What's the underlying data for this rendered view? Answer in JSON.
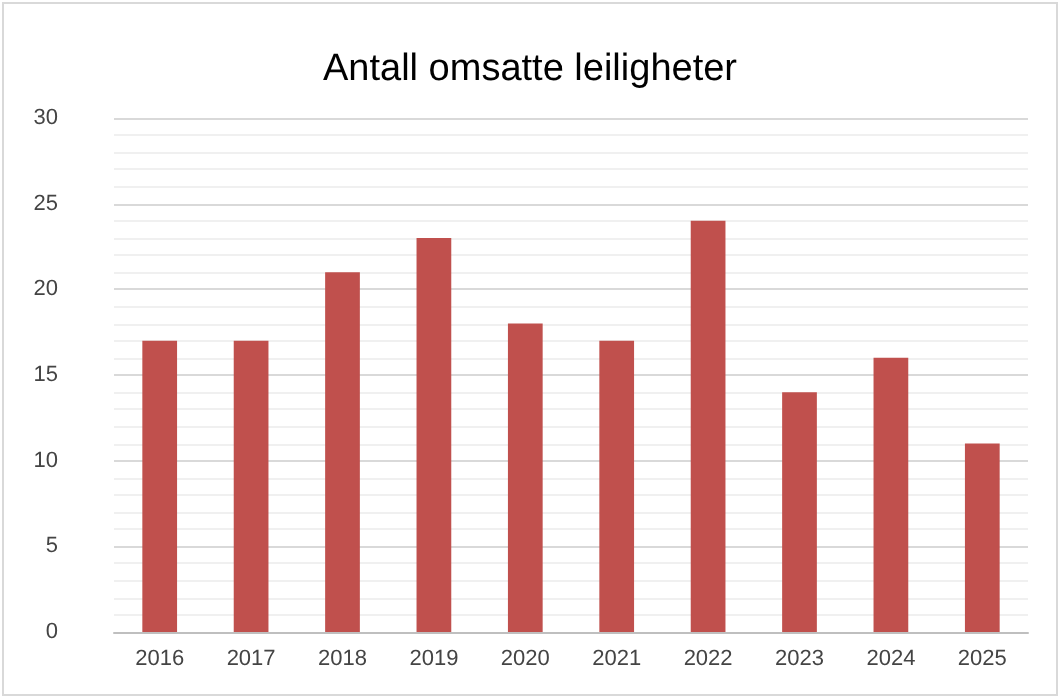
{
  "chart_data": {
    "type": "bar",
    "title": "Antall omsatte leiligheter",
    "categories": [
      "2016",
      "2017",
      "2018",
      "2019",
      "2020",
      "2021",
      "2022",
      "2023",
      "2024",
      "2025"
    ],
    "values": [
      17,
      17,
      21,
      23,
      18,
      17,
      24,
      14,
      16,
      11
    ],
    "color": "#c0504d",
    "ylim": [
      0,
      30
    ],
    "yticks": [
      0,
      5,
      10,
      15,
      20,
      25,
      30
    ],
    "grid": "y"
  }
}
